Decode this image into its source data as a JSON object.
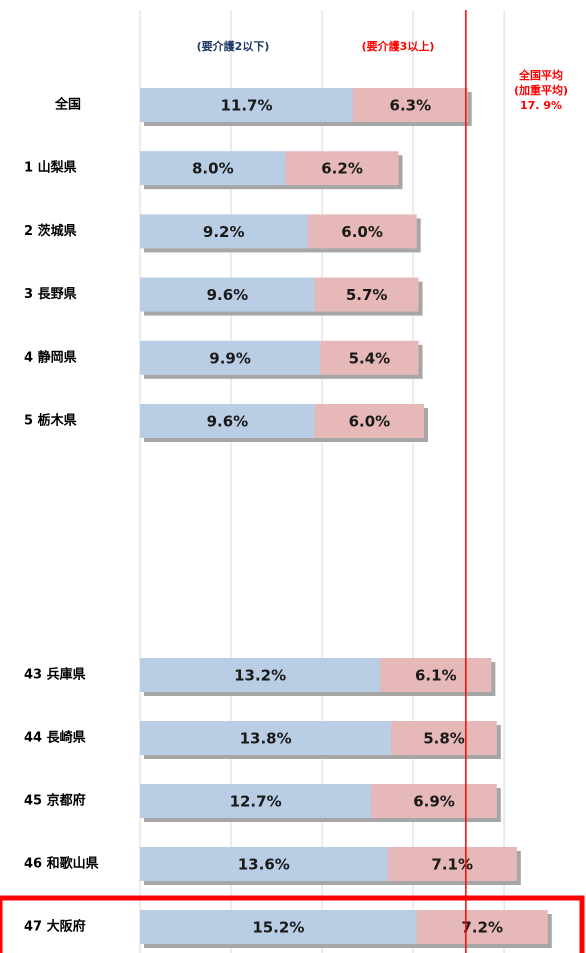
{
  "chart_data": {
    "type": "stacked-bar-horizontal",
    "categories": [
      "全国",
      "1 山梨県",
      "2 茨城県",
      "3 長野県",
      "4 静岡県",
      "5 栃木県",
      "43 兵庫県",
      "44 長崎県",
      "45 京都府",
      "46 和歌山県",
      "47 大阪府"
    ],
    "series": [
      {
        "name": "(要介護2以下)",
        "color": "#b9cde5",
        "values": [
          11.7,
          8.0,
          9.2,
          9.6,
          9.9,
          9.6,
          13.2,
          13.8,
          12.7,
          13.6,
          15.2
        ],
        "value_labels": [
          "11.7%",
          "8.0%",
          "9.2%",
          "9.6%",
          "9.9%",
          "9.6%",
          "13.2%",
          "13.8%",
          "12.7%",
          "13.6%",
          "15.2%"
        ]
      },
      {
        "name": "(要介護3以上)",
        "color": "#e6b9b8",
        "values": [
          6.3,
          6.2,
          6.0,
          5.7,
          5.4,
          6.0,
          6.1,
          5.8,
          6.9,
          7.1,
          7.2
        ],
        "value_labels": [
          "6.3%",
          "6.2%",
          "6.0%",
          "5.7%",
          "5.4%",
          "6.0%",
          "6.1%",
          "5.8%",
          "6.9%",
          "7.1%",
          "7.2%"
        ]
      }
    ],
    "xlim": [
      0,
      24.5
    ],
    "xticks": [
      0,
      5,
      10,
      15,
      20
    ],
    "grid": true,
    "reference_line": {
      "value": 17.9,
      "label": "17. 9%",
      "title": "全国平均",
      "subtitle": "(加重平均)",
      "color": "#ff0000"
    }
  }
}
